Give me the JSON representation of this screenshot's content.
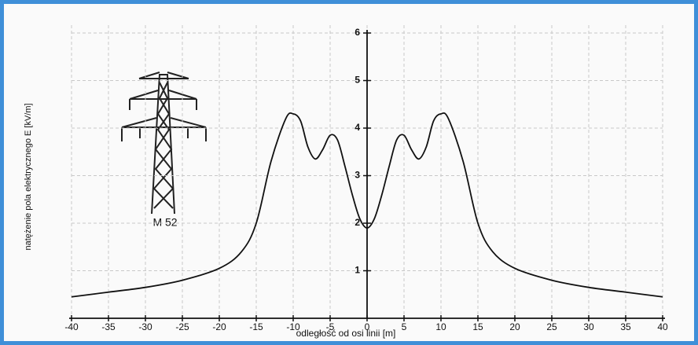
{
  "chart_data": {
    "type": "line",
    "xlabel": "odległość od osi linii [m]",
    "ylabel": "natężenie pola elektrycznego E [kV/m]",
    "annotation": "M 52",
    "x": [
      -40,
      -35,
      -30,
      -25,
      -20,
      -17,
      -15,
      -13,
      -11,
      -10,
      -9,
      -8,
      -7,
      -6,
      -5,
      -4,
      -3,
      -2,
      -1,
      0,
      1,
      2,
      3,
      4,
      5,
      6,
      7,
      8,
      9,
      10,
      11,
      13,
      15,
      17,
      20,
      25,
      30,
      35,
      40
    ],
    "values": [
      0.45,
      0.55,
      0.65,
      0.8,
      1.05,
      1.4,
      2.0,
      3.3,
      4.2,
      4.3,
      4.15,
      3.6,
      3.35,
      3.55,
      3.85,
      3.75,
      3.2,
      2.6,
      2.1,
      1.9,
      2.1,
      2.6,
      3.2,
      3.75,
      3.85,
      3.55,
      3.35,
      3.6,
      4.15,
      4.3,
      4.2,
      3.3,
      2.0,
      1.4,
      1.05,
      0.8,
      0.65,
      0.55,
      0.45
    ],
    "color": "#111111",
    "xlim": [
      -40,
      40
    ],
    "ylim": [
      0,
      6
    ],
    "xticks": [
      -40,
      -35,
      -30,
      -25,
      -20,
      -15,
      -10,
      -5,
      0,
      5,
      10,
      15,
      20,
      25,
      30,
      35,
      40
    ],
    "yticks": [
      1,
      2,
      3,
      4,
      5,
      6
    ],
    "grid": true
  }
}
